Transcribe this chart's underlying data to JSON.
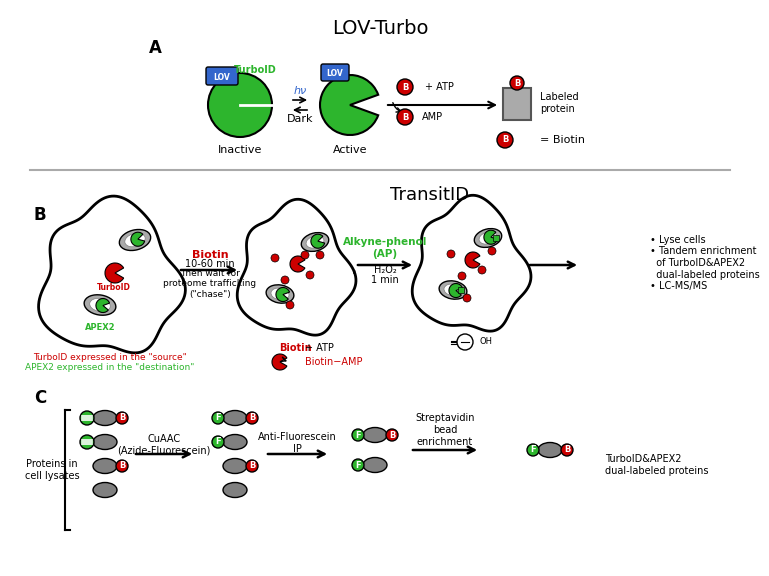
{
  "title_A": "LOV-Turbo",
  "title_B": "TransitID",
  "panel_A_label": "A",
  "panel_B_label": "B",
  "panel_C_label": "C",
  "color_green": "#2db52d",
  "color_dark_green": "#1a8c1a",
  "color_blue": "#3366cc",
  "color_red": "#cc0000",
  "color_gray": "#808080",
  "color_dark_gray": "#555555",
  "color_light_gray": "#aaaaaa",
  "color_white": "#ffffff",
  "color_black": "#000000",
  "color_bg": "#ffffff",
  "inactive_label": "Inactive",
  "active_label": "Active",
  "hv_label": "hν",
  "dark_label": "Dark",
  "atp_label": "+ ATP",
  "amp_label": "AMP",
  "labeled_protein_label": "Labeled\nprotein",
  "biotin_label": "= Biotin",
  "turboid_label": "TurboID",
  "lov_label": "LOV",
  "apex2_label": "APEX2",
  "source_label": "TurboID expressed in the \"source\"",
  "dest_label": "APEX2 expressed in the \"destination\"",
  "biotin_step_label1": "Biotin",
  "biotin_step_label2": "10-60 min",
  "biotin_step_label3": "Then wait for\nproteome trafficking\n(\"chase\")",
  "ap_label1": "Alkyne-phenol\n(AP)",
  "ap_label2": "H₂O₂",
  "ap_label3": "1 min",
  "lyse_label": "• Lyse cells\n• Tandem enrichment\n  of TurboID&APEX2\n  dual-labeled proteins\n• LC-MS/MS",
  "cuaac_label": "CuAAC\n(Azide-Fluorescein)",
  "anti_f_label": "Anti-Fluorescein\nIP",
  "strep_label": "Streptavidin\nbead\nenrichment",
  "lysate_label": "Proteins in\ncell lysates",
  "dual_label": "TurboID&APEX2\ndual-labeled proteins"
}
